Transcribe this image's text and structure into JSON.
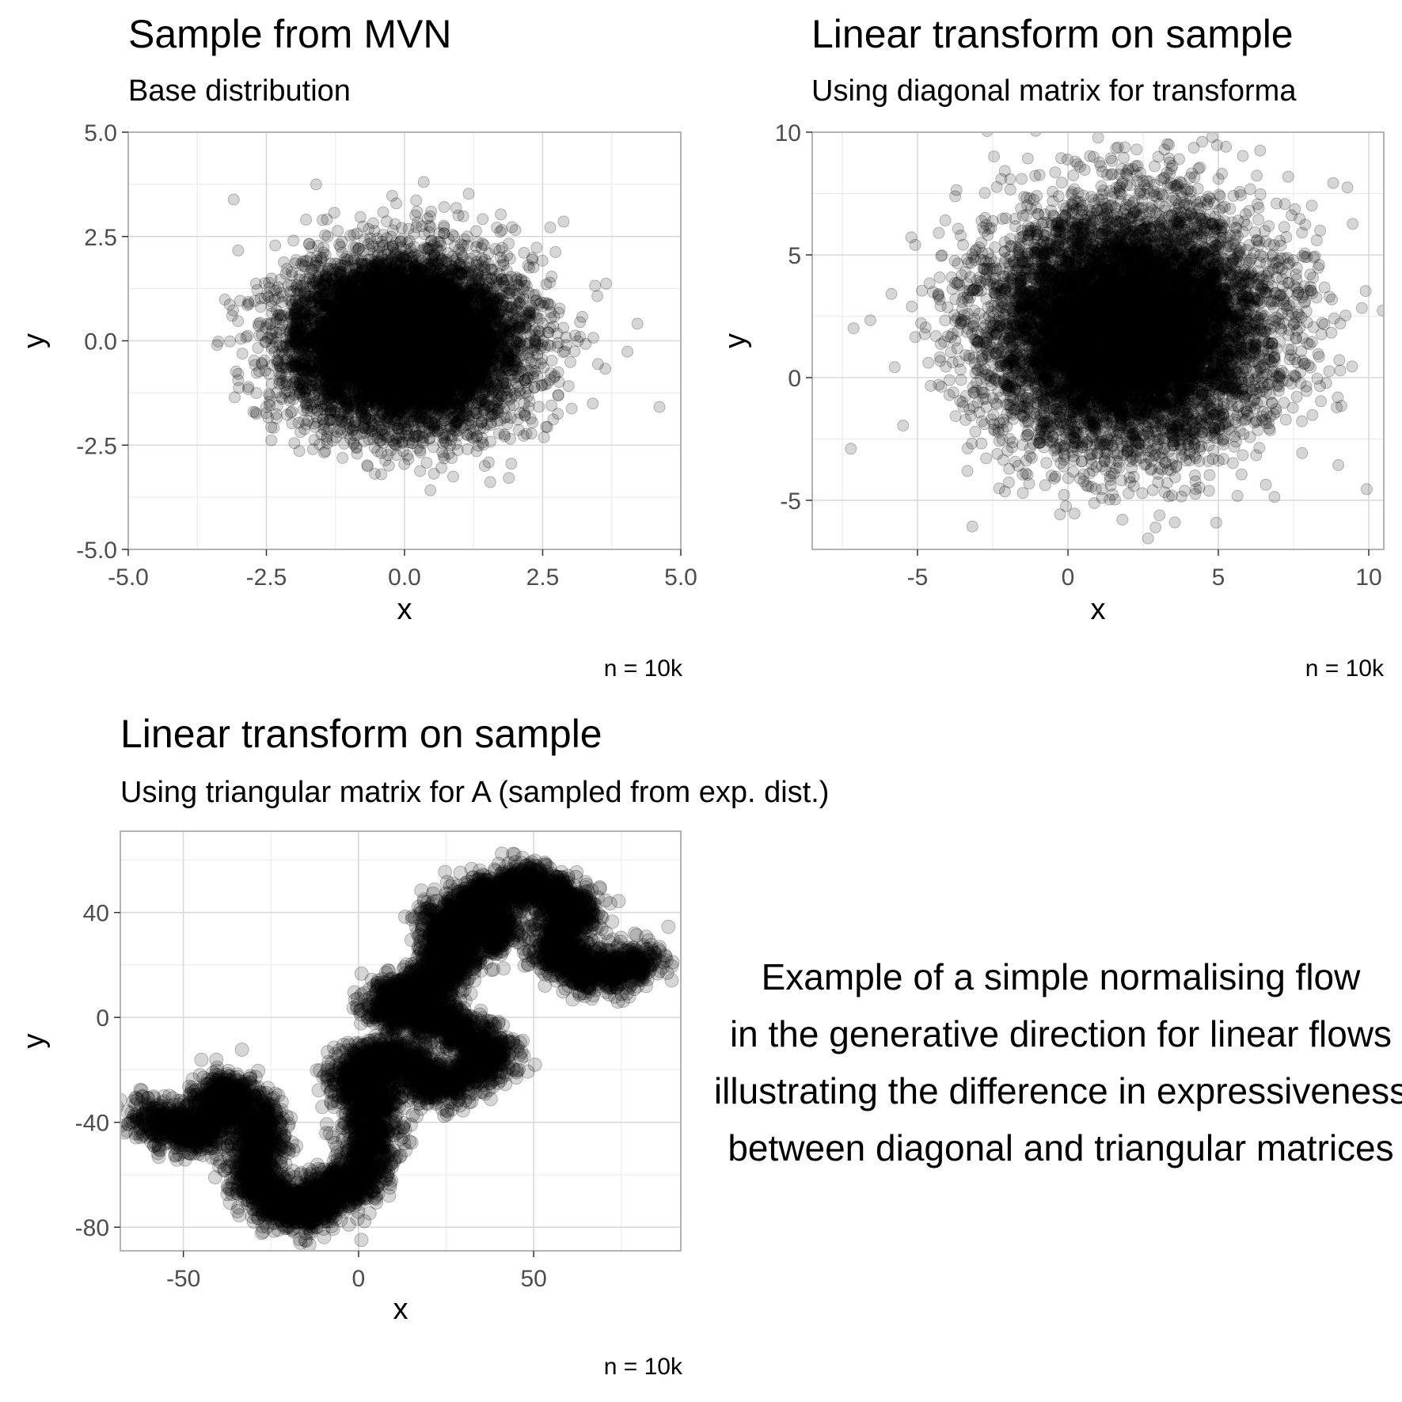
{
  "charts": [
    {
      "title": "Sample from MVN",
      "subtitle": "Base distribution",
      "caption": "n = 10k",
      "chart_data": {
        "type": "scatter",
        "title": "Sample from MVN",
        "subtitle": "Base distribution",
        "xlabel": "x",
        "ylabel": "y",
        "xlim": [
          -5,
          5
        ],
        "ylim": [
          -5,
          5
        ],
        "xticks": [
          -5,
          -2.5,
          0,
          2.5,
          5
        ],
        "xtick_labels": [
          "-5.0",
          "-2.5",
          "0.0",
          "2.5",
          "5.0"
        ],
        "yticks": [
          -5,
          -2.5,
          0,
          2.5,
          5
        ],
        "ytick_labels": [
          "-5.0",
          "-2.5",
          "0.0",
          "2.5",
          "5.0"
        ],
        "grid": true,
        "n_points": 10000,
        "distribution": {
          "kind": "gaussian",
          "mean": [
            0,
            0
          ],
          "sd": [
            1,
            1
          ],
          "rho": 0
        },
        "caption": "n = 10k"
      }
    },
    {
      "title": "Linear transform on sample",
      "subtitle": "Using diagonal matrix for transforma",
      "caption": "n = 10k",
      "chart_data": {
        "type": "scatter",
        "title": "Linear transform on sample",
        "subtitle": "Using diagonal matrix for transforma",
        "xlabel": "x",
        "ylabel": "y",
        "xlim": [
          -8.5,
          10.5
        ],
        "ylim": [
          -7,
          10
        ],
        "xticks": [
          -5,
          0,
          5,
          10
        ],
        "xtick_labels": [
          "-5",
          "0",
          "5",
          "10"
        ],
        "yticks": [
          -5,
          0,
          5,
          10
        ],
        "ytick_labels": [
          "-5",
          "0",
          "5",
          "10"
        ],
        "grid": true,
        "n_points": 10000,
        "distribution": {
          "kind": "gaussian",
          "mean": [
            2,
            2
          ],
          "sd": [
            2.3,
            2.4
          ],
          "rho": 0
        },
        "caption": "n = 10k"
      }
    },
    {
      "title": "Linear transform on sample",
      "subtitle": "Using triangular matrix for A (sampled from exp. dist.)",
      "caption": "n = 10k",
      "chart_data": {
        "type": "scatter",
        "title": "Linear transform on sample",
        "subtitle": "Using triangular matrix for A (sampled from exp. dist.)",
        "xlabel": "x",
        "ylabel": "y",
        "xlim": [
          -68,
          92
        ],
        "ylim": [
          -89,
          71
        ],
        "xticks": [
          -50,
          0,
          50
        ],
        "xtick_labels": [
          "-50",
          "0",
          "50"
        ],
        "yticks": [
          -80,
          -40,
          0,
          40
        ],
        "ytick_labels": [
          "-80",
          "-40",
          "0",
          "40"
        ],
        "grid": true,
        "n_points": 10000,
        "distribution": {
          "kind": "random-walk-path",
          "anchors": [
            [
              -63,
              -37
            ],
            [
              -45,
              -45
            ],
            [
              -38,
              -26
            ],
            [
              -28,
              -42
            ],
            [
              -30,
              -64
            ],
            [
              -18,
              -75
            ],
            [
              -8,
              -68
            ],
            [
              2,
              -58
            ],
            [
              5,
              -35
            ],
            [
              -2,
              -22
            ],
            [
              10,
              -14
            ],
            [
              22,
              -28
            ],
            [
              40,
              -14
            ],
            [
              24,
              -2
            ],
            [
              8,
              5
            ],
            [
              18,
              10
            ],
            [
              28,
              22
            ],
            [
              24,
              38
            ],
            [
              40,
              30
            ],
            [
              32,
              45
            ],
            [
              48,
              52
            ],
            [
              62,
              42
            ],
            [
              55,
              26
            ],
            [
              68,
              16
            ],
            [
              82,
              22
            ]
          ]
        },
        "caption": "n = 10k"
      }
    }
  ],
  "annotation": {
    "lines": [
      "Example of a simple normalising flow",
      "in the generative direction for linear flows",
      "illustrating the difference in expressiveness",
      "between diagonal and triangular matrices"
    ]
  },
  "colors": {
    "point_fill": "#000000",
    "point_alpha": 0.16,
    "grid_major": "#d9d9d9",
    "grid_minor": "#ececec",
    "panel_border": "#b3b3b3",
    "tick_text": "#4d4d4d"
  }
}
